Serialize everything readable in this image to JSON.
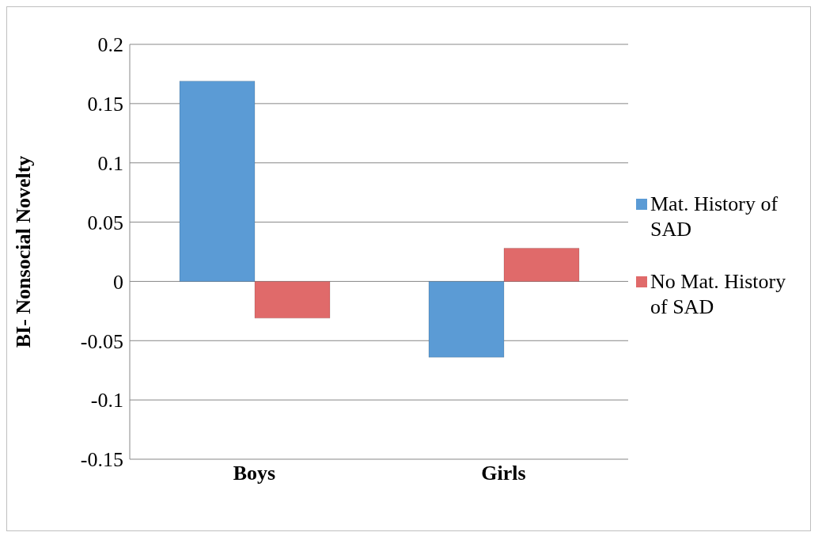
{
  "chart_data": {
    "type": "bar",
    "ylabel": "BI- Nonsocial Novelty",
    "categories": [
      "Boys",
      "Girls"
    ],
    "series": [
      {
        "name": "Mat. History of SAD",
        "color": "#5b9bd5",
        "values": [
          0.169,
          -0.064
        ]
      },
      {
        "name": "No Mat. History of SAD",
        "color": "#e06a6a",
        "values": [
          -0.031,
          0.028
        ]
      }
    ],
    "ylim": [
      -0.15,
      0.2
    ],
    "yticks": [
      -0.15,
      -0.1,
      -0.05,
      0,
      0.05,
      0.1,
      0.15,
      0.2
    ],
    "grid": "y",
    "legend": "right"
  }
}
